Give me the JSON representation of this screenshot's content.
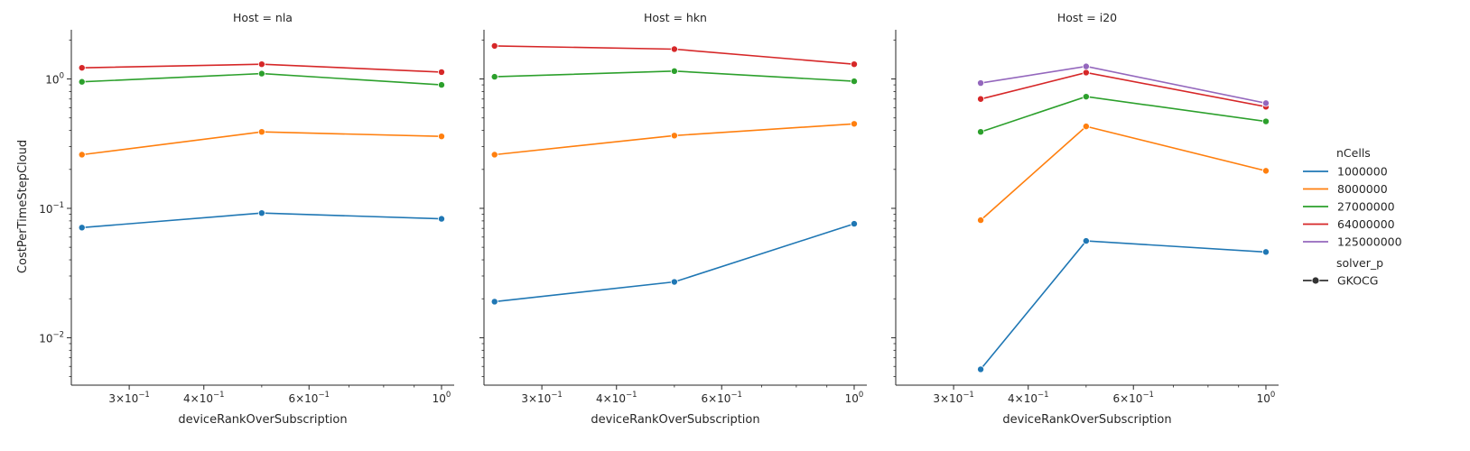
{
  "figure": {
    "ylabel": "CostPerTimeStepCloud",
    "xlabel": "deviceRankOverSubscription",
    "y_ticks": [
      {
        "value": 0.01,
        "base": "10",
        "exp": "−2"
      },
      {
        "value": 0.1,
        "base": "10",
        "exp": "−1"
      },
      {
        "value": 1,
        "base": "10",
        "exp": "0"
      }
    ],
    "x_ticks": [
      {
        "value": 0.3,
        "mantissa": "3×10",
        "exp": "−1"
      },
      {
        "value": 0.4,
        "mantissa": "4×10",
        "exp": "−1"
      },
      {
        "value": 0.6,
        "mantissa": "6×10",
        "exp": "−1"
      },
      {
        "value": 1,
        "mantissa": "10",
        "exp": "0"
      }
    ]
  },
  "legend": {
    "hue_title": "nCells",
    "hue_entries": [
      "1000000",
      "8000000",
      "27000000",
      "64000000",
      "125000000"
    ],
    "style_title": "solver_p",
    "style_entries": [
      "GKOCG"
    ]
  },
  "chart_data": [
    {
      "type": "line",
      "title": "Host = nla",
      "xscale": "log",
      "yscale": "log",
      "xlim": [
        0.24,
        1.05
      ],
      "ylim": [
        0.0043,
        2.4
      ],
      "series": [
        {
          "name": "1000000",
          "color": "#1f77b4",
          "x": [
            0.25,
            0.5,
            1.0
          ],
          "y": [
            0.071,
            0.092,
            0.083
          ]
        },
        {
          "name": "8000000",
          "color": "#ff7f0e",
          "x": [
            0.25,
            0.5,
            1.0
          ],
          "y": [
            0.26,
            0.39,
            0.36
          ]
        },
        {
          "name": "27000000",
          "color": "#2ca02c",
          "x": [
            0.25,
            0.5,
            1.0
          ],
          "y": [
            0.95,
            1.1,
            0.9
          ]
        },
        {
          "name": "64000000",
          "color": "#d62728",
          "x": [
            0.25,
            0.5,
            1.0
          ],
          "y": [
            1.22,
            1.3,
            1.13
          ]
        }
      ]
    },
    {
      "type": "line",
      "title": "Host = hkn",
      "xscale": "log",
      "yscale": "log",
      "xlim": [
        0.24,
        1.05
      ],
      "ylim": [
        0.0043,
        2.4
      ],
      "series": [
        {
          "name": "1000000",
          "color": "#1f77b4",
          "x": [
            0.25,
            0.5,
            1.0
          ],
          "y": [
            0.019,
            0.027,
            0.076
          ]
        },
        {
          "name": "8000000",
          "color": "#ff7f0e",
          "x": [
            0.25,
            0.5,
            1.0
          ],
          "y": [
            0.26,
            0.365,
            0.45
          ]
        },
        {
          "name": "27000000",
          "color": "#2ca02c",
          "x": [
            0.25,
            0.5,
            1.0
          ],
          "y": [
            1.04,
            1.15,
            0.96
          ]
        },
        {
          "name": "64000000",
          "color": "#d62728",
          "x": [
            0.25,
            0.5,
            1.0
          ],
          "y": [
            1.8,
            1.7,
            1.3
          ]
        }
      ]
    },
    {
      "type": "line",
      "title": "Host = i20",
      "xscale": "log",
      "yscale": "log",
      "xlim": [
        0.24,
        1.05
      ],
      "ylim": [
        0.0043,
        2.4
      ],
      "series": [
        {
          "name": "1000000",
          "color": "#1f77b4",
          "x": [
            0.333,
            0.5,
            1.0
          ],
          "y": [
            0.0057,
            0.056,
            0.046
          ]
        },
        {
          "name": "8000000",
          "color": "#ff7f0e",
          "x": [
            0.333,
            0.5,
            1.0
          ],
          "y": [
            0.081,
            0.43,
            0.195
          ]
        },
        {
          "name": "27000000",
          "color": "#2ca02c",
          "x": [
            0.333,
            0.5,
            1.0
          ],
          "y": [
            0.39,
            0.73,
            0.47
          ]
        },
        {
          "name": "64000000",
          "color": "#d62728",
          "x": [
            0.333,
            0.5,
            1.0
          ],
          "y": [
            0.7,
            1.12,
            0.61
          ]
        },
        {
          "name": "125000000",
          "color": "#9467bd",
          "x": [
            0.333,
            0.5,
            1.0
          ],
          "y": [
            0.93,
            1.25,
            0.65
          ]
        }
      ]
    }
  ]
}
